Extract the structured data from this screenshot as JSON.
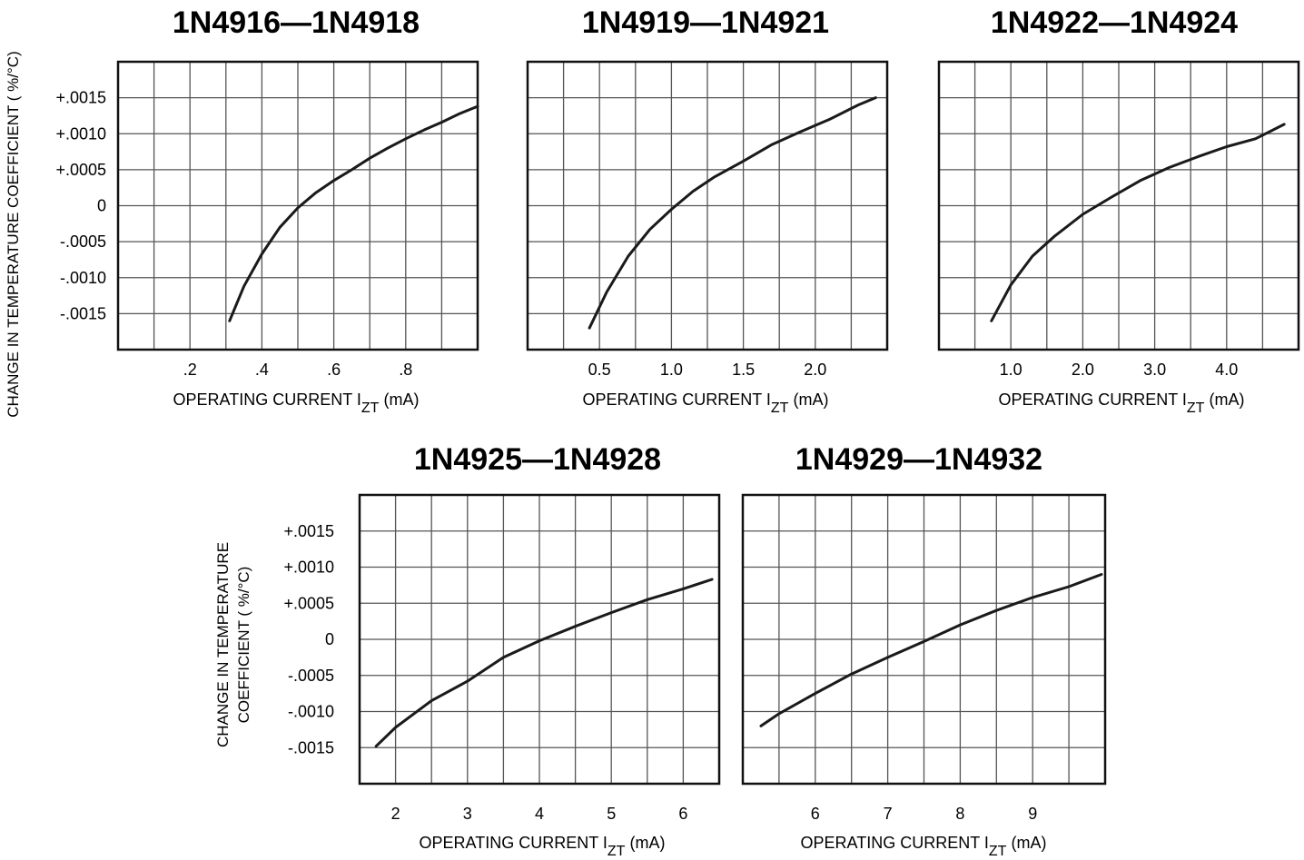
{
  "global_ylabel": "CHANGE IN TEMPERATURE COEFFICIENT ( %/°C)",
  "bottom_ylabel_line1": "CHANGE IN TEMPERATURE",
  "bottom_ylabel_line2": "COEFFICIENT ( %/°C)",
  "y_tick_labels": [
    "+.0015",
    "+.0010",
    "+.0005",
    "0",
    "-.0005",
    "-.0010",
    "-.0015"
  ],
  "colors": {
    "curve": "#1a1a1a",
    "grid": "#555555",
    "frame": "#111111"
  },
  "chart_data": [
    {
      "type": "line",
      "title": "1N4916—1N4918",
      "xlabel_main": "OPERATING CURRENT I",
      "xlabel_sub": "ZT",
      "xlabel_unit": "(mA)",
      "x_ticks": [
        0.2,
        0.4,
        0.6,
        0.8
      ],
      "x_tick_labels": [
        ".2",
        ".4",
        ".6",
        ".8"
      ],
      "xlim": [
        0.0,
        1.0
      ],
      "ylim": [
        -0.002,
        0.002
      ],
      "y_ticks": [
        0.0015,
        0.001,
        0.0005,
        0,
        -0.0005,
        -0.001,
        -0.0015
      ],
      "grid_x_step": 0.1,
      "grid_y_step": 0.0005,
      "grid": true,
      "series": [
        {
          "x": [
            0.31,
            0.35,
            0.4,
            0.45,
            0.5,
            0.55,
            0.6,
            0.65,
            0.7,
            0.75,
            0.8,
            0.85,
            0.9,
            0.95,
            1.0
          ],
          "y": [
            -0.0016,
            -0.00112,
            -0.00067,
            -0.0003,
            -3e-05,
            0.00018,
            0.00035,
            0.0005,
            0.00066,
            0.0008,
            0.00093,
            0.00105,
            0.00116,
            0.00128,
            0.00138
          ]
        }
      ]
    },
    {
      "type": "line",
      "title": "1N4919—1N4921",
      "xlabel_main": "OPERATING CURRENT I",
      "xlabel_sub": "ZT",
      "xlabel_unit": "(mA)",
      "x_ticks": [
        0.5,
        1.0,
        1.5,
        2.0
      ],
      "x_tick_labels": [
        "0.5",
        "1.0",
        "1.5",
        "2.0"
      ],
      "xlim": [
        0.0,
        2.5
      ],
      "ylim": [
        -0.002,
        0.002
      ],
      "y_ticks": [
        0.0015,
        0.001,
        0.0005,
        0,
        -0.0005,
        -0.001,
        -0.0015
      ],
      "grid_x_step": 0.25,
      "grid_y_step": 0.0005,
      "grid": true,
      "series": [
        {
          "x": [
            0.43,
            0.55,
            0.7,
            0.85,
            1.0,
            1.15,
            1.3,
            1.5,
            1.7,
            1.9,
            2.1,
            2.3,
            2.42
          ],
          "y": [
            -0.0017,
            -0.0012,
            -0.0007,
            -0.00033,
            -5e-05,
            0.0002,
            0.0004,
            0.00062,
            0.00085,
            0.00103,
            0.0012,
            0.0014,
            0.0015
          ]
        }
      ]
    },
    {
      "type": "line",
      "title": "1N4922—1N4924",
      "xlabel_main": "OPERATING CURRENT I",
      "xlabel_sub": "ZT",
      "xlabel_unit": "(mA)",
      "x_ticks": [
        1.0,
        2.0,
        3.0,
        4.0
      ],
      "x_tick_labels": [
        "1.0",
        "2.0",
        "3.0",
        "4.0"
      ],
      "xlim": [
        0.0,
        5.0
      ],
      "ylim": [
        -0.002,
        0.002
      ],
      "y_ticks": [
        0.0015,
        0.001,
        0.0005,
        0,
        -0.0005,
        -0.001,
        -0.0015
      ],
      "grid_x_step": 0.5,
      "grid_y_step": 0.0005,
      "grid": true,
      "series": [
        {
          "x": [
            0.73,
            1.0,
            1.3,
            1.6,
            2.0,
            2.4,
            2.8,
            3.2,
            3.6,
            4.0,
            4.4,
            4.8
          ],
          "y": [
            -0.0016,
            -0.0011,
            -0.0007,
            -0.00043,
            -0.00012,
            0.00012,
            0.00035,
            0.00053,
            0.00068,
            0.00082,
            0.00093,
            0.00113
          ]
        }
      ]
    },
    {
      "type": "line",
      "title": "1N4925—1N4928",
      "xlabel_main": "OPERATING CURRENT I",
      "xlabel_sub": "ZT",
      "xlabel_unit": "(mA)",
      "x_ticks": [
        2,
        3,
        4,
        5,
        6
      ],
      "x_tick_labels": [
        "2",
        "3",
        "4",
        "5",
        "6"
      ],
      "xlim": [
        1.5,
        6.5
      ],
      "ylim": [
        -0.002,
        0.002
      ],
      "y_ticks": [
        0.0015,
        0.001,
        0.0005,
        0,
        -0.0005,
        -0.001,
        -0.0015
      ],
      "grid_x_step": 0.5,
      "grid_y_step": 0.0005,
      "grid": true,
      "series": [
        {
          "x": [
            1.73,
            2.0,
            2.5,
            3.0,
            3.5,
            4.0,
            4.5,
            5.0,
            5.5,
            6.0,
            6.4
          ],
          "y": [
            -0.00148,
            -0.00122,
            -0.00085,
            -0.00058,
            -0.00025,
            -2e-05,
            0.00018,
            0.00037,
            0.00055,
            0.0007,
            0.00083
          ]
        }
      ]
    },
    {
      "type": "line",
      "title": "1N4929—1N4932",
      "xlabel_main": "OPERATING CURRENT I",
      "xlabel_sub": "ZT",
      "xlabel_unit": "(mA)",
      "x_ticks": [
        6,
        7,
        8,
        9
      ],
      "x_tick_labels": [
        "6",
        "7",
        "8",
        "9"
      ],
      "xlim": [
        5.0,
        10.0
      ],
      "ylim": [
        -0.002,
        0.002
      ],
      "y_ticks": [
        0.0015,
        0.001,
        0.0005,
        0,
        -0.0005,
        -0.001,
        -0.0015
      ],
      "grid_x_step": 0.5,
      "grid_y_step": 0.0005,
      "grid": true,
      "series": [
        {
          "x": [
            5.25,
            5.5,
            6.0,
            6.5,
            7.0,
            7.5,
            8.0,
            8.5,
            9.0,
            9.5,
            9.95
          ],
          "y": [
            -0.0012,
            -0.00103,
            -0.00075,
            -0.00048,
            -0.00025,
            -3e-05,
            0.0002,
            0.0004,
            0.00058,
            0.00073,
            0.0009
          ]
        }
      ]
    }
  ]
}
